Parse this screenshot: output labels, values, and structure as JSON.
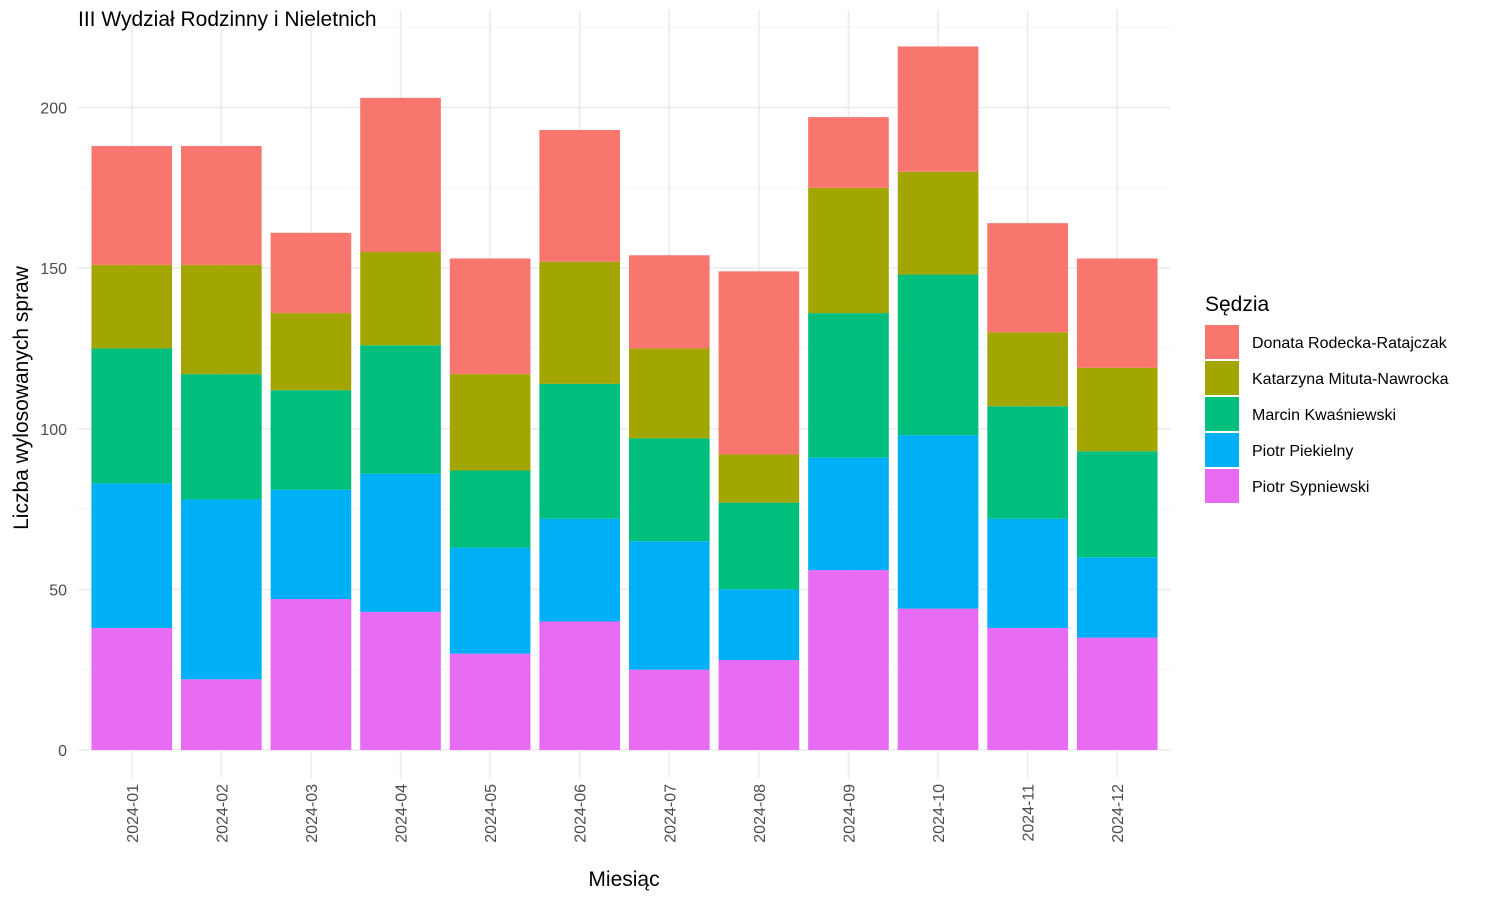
{
  "chart_data": {
    "type": "bar",
    "stacked": true,
    "title": "III Wydział Rodzinny i Nieletnich",
    "xlabel": "Miesiąc",
    "ylabel": "Liczba wylosowanych spraw",
    "ylim": [
      0,
      220
    ],
    "yticks": [
      0,
      50,
      100,
      150,
      200
    ],
    "grid": true,
    "legend_position": "right",
    "legend_title": "Sędzia",
    "categories": [
      "2024-01",
      "2024-02",
      "2024-03",
      "2024-04",
      "2024-05",
      "2024-06",
      "2024-07",
      "2024-08",
      "2024-09",
      "2024-10",
      "2024-11",
      "2024-12"
    ],
    "series": [
      {
        "name": "Donata Rodecka-Ratajczak",
        "color": "#F8766D",
        "values": [
          37,
          37,
          25,
          48,
          36,
          41,
          29,
          57,
          22,
          39,
          34,
          34
        ]
      },
      {
        "name": "Katarzyna Mituta-Nawrocka",
        "color": "#A3A500",
        "values": [
          26,
          34,
          24,
          29,
          30,
          38,
          28,
          15,
          39,
          32,
          23,
          26
        ]
      },
      {
        "name": "Marcin Kwaśniewski",
        "color": "#00BF7D",
        "values": [
          42,
          39,
          31,
          40,
          24,
          42,
          32,
          27,
          45,
          50,
          35,
          33
        ]
      },
      {
        "name": "Piotr Piekielny",
        "color": "#00B0F6",
        "values": [
          45,
          56,
          34,
          43,
          33,
          32,
          40,
          22,
          35,
          54,
          34,
          25
        ]
      },
      {
        "name": "Piotr Sypniewski",
        "color": "#E76BF3",
        "values": [
          38,
          22,
          47,
          43,
          30,
          40,
          25,
          28,
          56,
          44,
          38,
          35
        ]
      }
    ]
  }
}
